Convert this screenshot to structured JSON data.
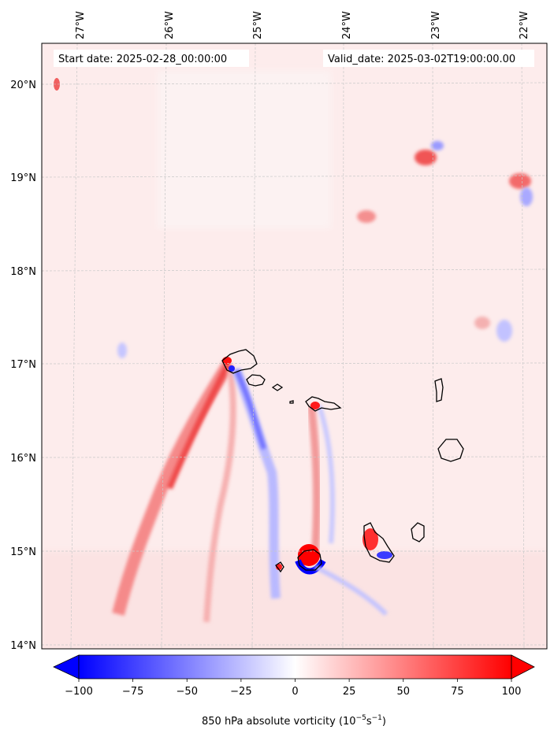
{
  "map": {
    "start_date_label": "Start date: 2025-02-28_00:00:00",
    "valid_date_label": "Valid_date: 2025-03-02T19:00:00.00",
    "lon_ticks": [
      "27°W",
      "26°W",
      "25°W",
      "24°W",
      "23°W",
      "22°W"
    ],
    "lat_ticks": [
      "20°N",
      "19°N",
      "18°N",
      "17°N",
      "16°N",
      "15°N",
      "14°N"
    ],
    "field": "850 hPa absolute vorticity",
    "colormap": "bwr",
    "gridlines": true
  },
  "colorbar": {
    "ticks": [
      "−100",
      "−75",
      "−50",
      "−25",
      "0",
      "25",
      "50",
      "75",
      "100"
    ],
    "tick_values": [
      -100,
      -75,
      -50,
      -25,
      0,
      25,
      50,
      75,
      100
    ],
    "range": [
      -100,
      100
    ],
    "extend": "both",
    "label_prefix": "850 hPa absolute vorticity (10",
    "label_exp1": "−5",
    "label_mid": "s",
    "label_exp2": "−1",
    "label_suffix": ")",
    "low_color": "#0000ff",
    "mid_color": "#ffffff",
    "high_color": "#ff0000"
  }
}
